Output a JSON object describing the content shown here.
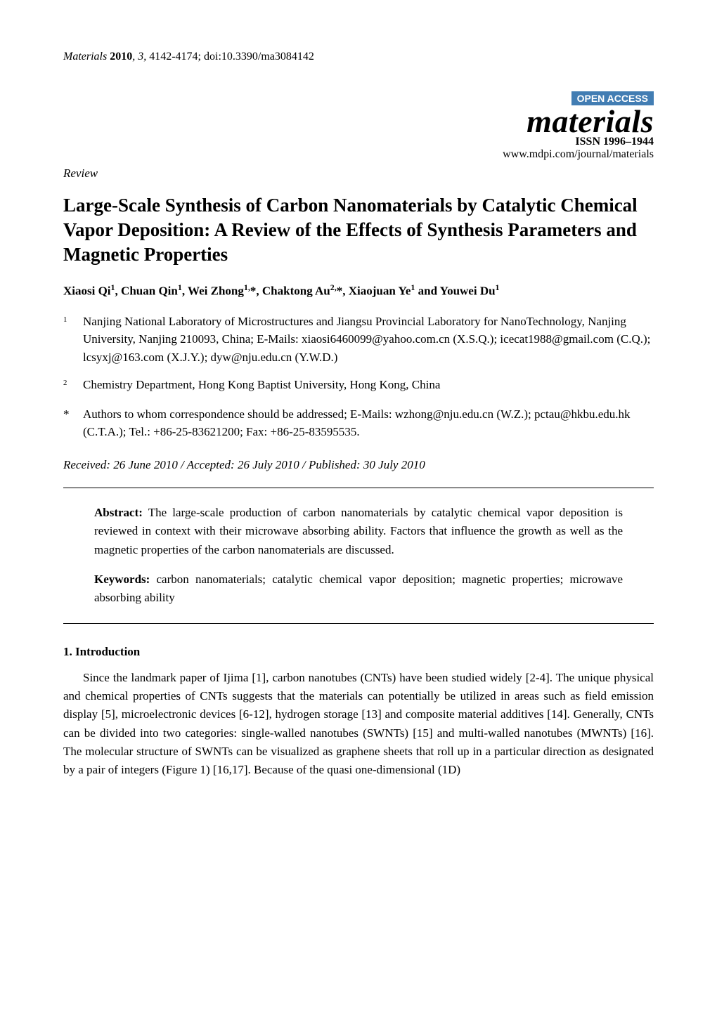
{
  "header": {
    "journal_abbrev": "Materials",
    "year": "2010",
    "volume_issue": "3",
    "pages": "4142-4174",
    "doi": "doi:10.3390/ma3084142"
  },
  "masthead": {
    "open_access": "OPEN ACCESS",
    "journal_name": "materials",
    "issn_label": "ISSN 1996–1944",
    "journal_url": "www.mdpi.com/journal/materials"
  },
  "article_type": "Review",
  "title": "Large-Scale Synthesis of Carbon Nanomaterials by Catalytic Chemical Vapor Deposition: A Review of the Effects of Synthesis Parameters and Magnetic Properties",
  "authors_line": {
    "a1": {
      "name": "Xiaosi Qi",
      "aff": "1"
    },
    "sep1": ", ",
    "a2": {
      "name": "Chuan Qin",
      "aff": "1"
    },
    "sep2": ", ",
    "a3": {
      "name": "Wei Zhong",
      "aff": "1,",
      "star": "*"
    },
    "sep3": ", ",
    "a4": {
      "name": "Chaktong Au",
      "aff": "2,",
      "star": "*"
    },
    "sep4": ", ",
    "a5": {
      "name": "Xiaojuan Ye",
      "aff": "1"
    },
    "sep5": " and ",
    "a6": {
      "name": "Youwei Du",
      "aff": "1"
    }
  },
  "affiliations": [
    {
      "num": "1",
      "text": "Nanjing National Laboratory of Microstructures and Jiangsu Provincial Laboratory for NanoTechnology, Nanjing University, Nanjing 210093, China; E-Mails: xiaosi6460099@yahoo.com.cn (X.S.Q.); icecat1988@gmail.com (C.Q.); lcsyxj@163.com (X.J.Y.); dyw@nju.edu.cn (Y.W.D.)"
    },
    {
      "num": "2",
      "text": "Chemistry Department, Hong Kong Baptist University, Hong Kong, China"
    }
  ],
  "correspondence": {
    "mark": "*",
    "text": "Authors to whom correspondence should be addressed; E-Mails: wzhong@nju.edu.cn (W.Z.); pctau@hkbu.edu.hk (C.T.A.); Tel.: +86-25-83621200; Fax: +86-25-83595535."
  },
  "dates": "Received: 26 June 2010 / Accepted: 26 July 2010 / Published: 30 July 2010",
  "abstract": {
    "label": "Abstract:",
    "text": " The large-scale production of carbon nanomaterials by catalytic chemical vapor deposition is reviewed in context with their microwave absorbing ability. Factors that influence the growth as well as the magnetic properties of the carbon nanomaterials are discussed."
  },
  "keywords": {
    "label": "Keywords:",
    "text": " carbon nanomaterials; catalytic chemical vapor deposition; magnetic properties; microwave absorbing ability"
  },
  "section1": {
    "heading": "1. Introduction",
    "para": "Since the landmark paper of Ijima [1], carbon nanotubes (CNTs) have been studied widely [2-4]. The unique physical and chemical properties of CNTs suggests that the materials can potentially be utilized in areas such as field emission display [5], microelectronic devices [6-12], hydrogen storage [13] and composite material additives [14]. Generally, CNTs can be divided into two categories: single-walled nanotubes (SWNTs) [15] and multi-walled nanotubes (MWNTs) [16]. The molecular structure of SWNTs can be visualized as graphene sheets that roll up in a particular direction as designated by a pair of integers (Figure 1) [16,17]. Because of the quasi one-dimensional (1D)"
  },
  "styles": {
    "open_access_bg": "#427db3",
    "open_access_fg": "#ffffff",
    "text_color": "#000000",
    "bg_color": "#ffffff",
    "body_fontsize_pt": 12,
    "title_fontsize_pt": 20,
    "journal_name_fontsize_pt": 34
  }
}
